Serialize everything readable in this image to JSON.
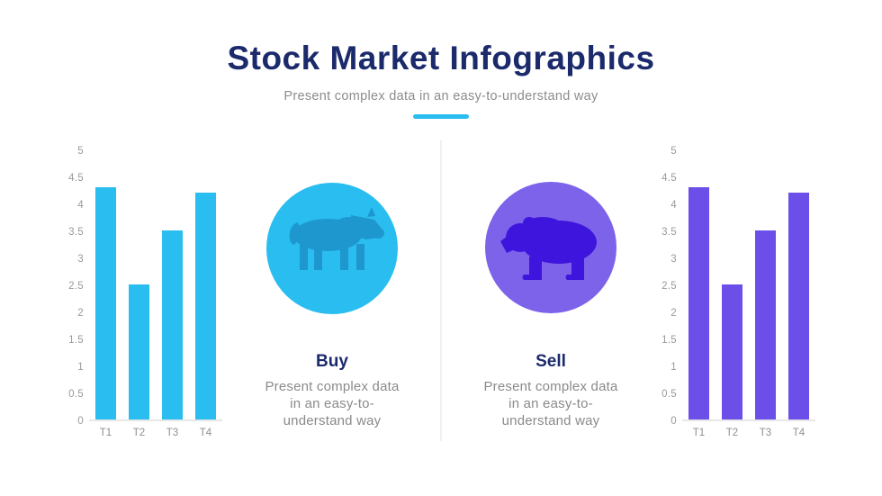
{
  "header": {
    "title": "Stock Market Infographics",
    "subtitle": "Present complex data in an easy-to-understand way"
  },
  "sections": {
    "buy": {
      "label": "Buy",
      "description": "Present complex data in an easy-to-understand way",
      "icon": "bull-icon",
      "circle_color": "#29bdf0",
      "icon_color": "#1e97cf"
    },
    "sell": {
      "label": "Sell",
      "description": "Present complex data in an easy-to-understand way",
      "icon": "bear-icon",
      "circle_color": "#7c63ea",
      "icon_color": "#3e15dd"
    }
  },
  "colors": {
    "accent_cyan": "#29bdf0",
    "accent_purple": "#6c4ee9",
    "title_navy": "#1b2a6b",
    "text_gray": "#8c8c8c",
    "axis_gray": "#9a9a9a"
  },
  "chart_data": [
    {
      "type": "bar",
      "position": "left",
      "categories": [
        "T1",
        "T2",
        "T3",
        "T4"
      ],
      "values": [
        4.3,
        2.5,
        3.5,
        4.2
      ],
      "bar_color": "#29bdf0",
      "title": "",
      "xlabel": "",
      "ylabel": "",
      "ylim": [
        0,
        5
      ],
      "ytick_step": 0.5,
      "grid": false,
      "legend": false
    },
    {
      "type": "bar",
      "position": "right",
      "categories": [
        "T1",
        "T2",
        "T3",
        "T4"
      ],
      "values": [
        4.3,
        2.5,
        3.5,
        4.2
      ],
      "bar_color": "#6c4ee9",
      "title": "",
      "xlabel": "",
      "ylabel": "",
      "ylim": [
        0,
        5
      ],
      "ytick_step": 0.5,
      "grid": false,
      "legend": false
    }
  ]
}
